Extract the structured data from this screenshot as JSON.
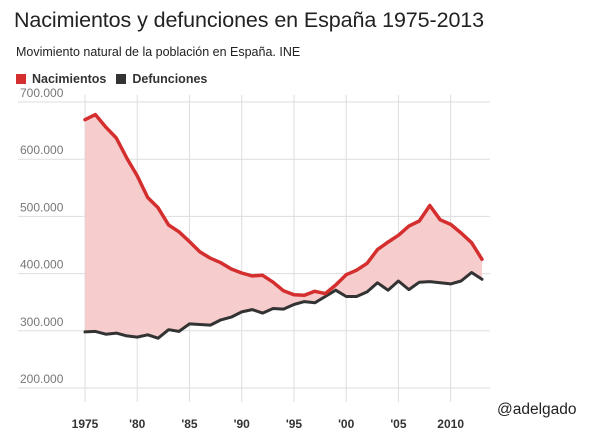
{
  "title": "Nacimientos y defunciones en España 1975-2013",
  "subtitle": "Movimiento natural de la población en España. INE",
  "credit": "@adelgado",
  "colors": {
    "births": "#d42e2e",
    "deaths": "#333333",
    "fill": "#f6cccc",
    "grid": "#dddddd"
  },
  "chart_data": {
    "type": "line",
    "title": "Nacimientos y defunciones en España 1975-2013",
    "subtitle": "Movimiento natural de la población en España. INE",
    "xlabel": "",
    "ylabel": "",
    "xlim": [
      1975,
      2013
    ],
    "ylim": [
      180000,
      720000
    ],
    "grid": true,
    "legend_position": "top-left",
    "x_ticks": [
      {
        "value": 1975,
        "label": "1975"
      },
      {
        "value": 1980,
        "label": "'80"
      },
      {
        "value": 1985,
        "label": "'85"
      },
      {
        "value": 1990,
        "label": "'90"
      },
      {
        "value": 1995,
        "label": "'95"
      },
      {
        "value": 2000,
        "label": "'00"
      },
      {
        "value": 2005,
        "label": "'05"
      },
      {
        "value": 2010,
        "label": "2010"
      }
    ],
    "y_ticks": [
      {
        "value": 200000,
        "label": "200.000"
      },
      {
        "value": 300000,
        "label": "300.000"
      },
      {
        "value": 400000,
        "label": "400.000"
      },
      {
        "value": 500000,
        "label": "500.000"
      },
      {
        "value": 600000,
        "label": "600.000"
      },
      {
        "value": 700000,
        "label": "700.000"
      }
    ],
    "x": [
      1975,
      1976,
      1977,
      1978,
      1979,
      1980,
      1981,
      1982,
      1983,
      1984,
      1985,
      1986,
      1987,
      1988,
      1989,
      1990,
      1991,
      1992,
      1993,
      1994,
      1995,
      1996,
      1997,
      1998,
      1999,
      2000,
      2001,
      2002,
      2003,
      2004,
      2005,
      2006,
      2007,
      2008,
      2009,
      2010,
      2011,
      2012,
      2013
    ],
    "series": [
      {
        "name": "Nacimientos",
        "color": "#d42e2e",
        "values": [
          669000,
          678000,
          656000,
          637000,
          602000,
          571000,
          533000,
          515000,
          485000,
          473000,
          456000,
          438000,
          427000,
          419000,
          408000,
          401000,
          396000,
          397000,
          385000,
          370000,
          363000,
          362000,
          369000,
          365000,
          380000,
          398000,
          406000,
          418000,
          442000,
          455000,
          467000,
          483000,
          492000,
          519000,
          494000,
          486000,
          471000,
          454000,
          425000
        ]
      },
      {
        "name": "Defunciones",
        "color": "#333333",
        "values": [
          298000,
          299000,
          294000,
          296000,
          291000,
          289000,
          293000,
          287000,
          302000,
          299000,
          312000,
          311000,
          310000,
          319000,
          324000,
          333000,
          337000,
          331000,
          339000,
          338000,
          346000,
          351000,
          349000,
          360000,
          371000,
          360000,
          360000,
          368000,
          384000,
          371000,
          387000,
          372000,
          385000,
          386000,
          384000,
          382000,
          387000,
          402000,
          390000
        ]
      }
    ]
  }
}
